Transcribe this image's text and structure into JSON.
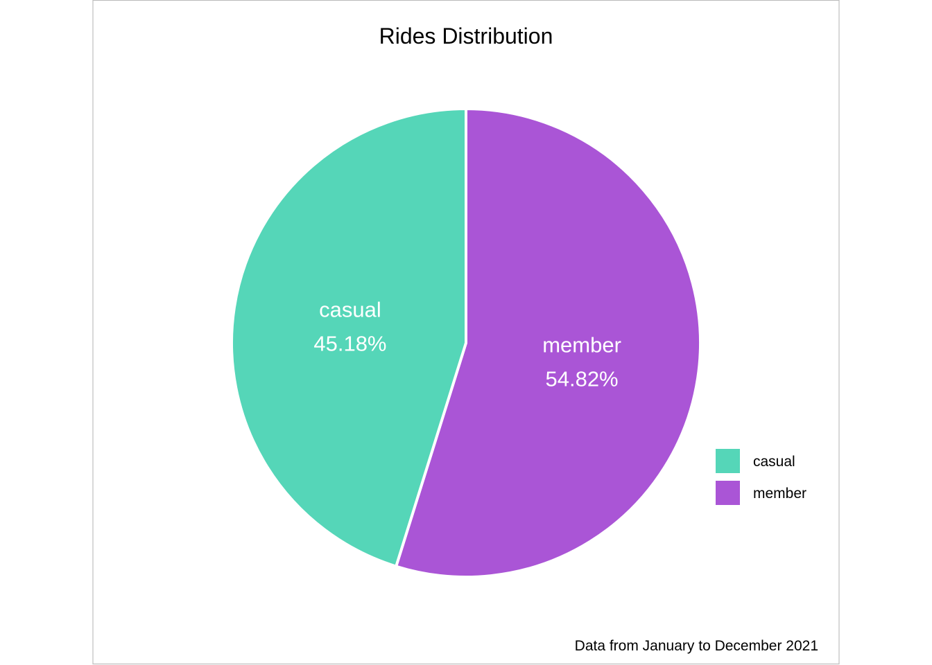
{
  "chart_data": {
    "type": "pie",
    "title": "Rides Distribution",
    "caption": "Data from January to December 2021",
    "slices": [
      {
        "label": "casual",
        "value": 45.18,
        "value_label": "45.18%",
        "color": "#55d6b8"
      },
      {
        "label": "member",
        "value": 54.82,
        "value_label": "54.82%",
        "color": "#aa55d6"
      }
    ],
    "legend": {
      "position": "right",
      "entries": [
        {
          "label": "casual",
          "color": "#55d6b8"
        },
        {
          "label": "member",
          "color": "#aa55d6"
        }
      ]
    },
    "slice_border_color": "#ffffff",
    "panel_border_color": "#bdbdbd"
  }
}
